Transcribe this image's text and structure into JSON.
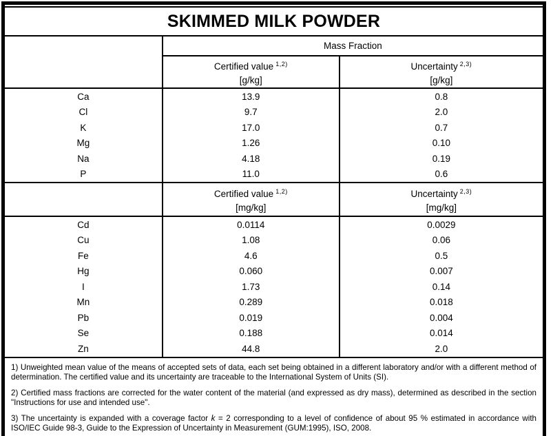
{
  "title": "SKIMMED MILK POWDER",
  "table": {
    "group_header": "Mass Fraction",
    "sections": [
      {
        "certified_label": "Certified value",
        "certified_ref": "1,2)",
        "uncertainty_label": "Uncertainty",
        "uncertainty_ref": "2,3)",
        "unit": "[g/kg]",
        "rows": [
          {
            "element": "Ca",
            "certified": "13.9",
            "uncertainty": "0.8"
          },
          {
            "element": "Cl",
            "certified": "9.7",
            "uncertainty": "2.0"
          },
          {
            "element": "K",
            "certified": "17.0",
            "uncertainty": "0.7"
          },
          {
            "element": "Mg",
            "certified": "1.26",
            "uncertainty": "0.10"
          },
          {
            "element": "Na",
            "certified": "4.18",
            "uncertainty": "0.19"
          },
          {
            "element": "P",
            "certified": "11.0",
            "uncertainty": "0.6"
          }
        ]
      },
      {
        "certified_label": "Certified value",
        "certified_ref": "1,2)",
        "uncertainty_label": "Uncertainty",
        "uncertainty_ref": "2,3)",
        "unit": "[mg/kg]",
        "rows": [
          {
            "element": "Cd",
            "certified": "0.0114",
            "uncertainty": "0.0029"
          },
          {
            "element": "Cu",
            "certified": "1.08",
            "uncertainty": "0.06"
          },
          {
            "element": "Fe",
            "certified": "4.6",
            "uncertainty": "0.5"
          },
          {
            "element": "Hg",
            "certified": "0.060",
            "uncertainty": "0.007"
          },
          {
            "element": "I",
            "certified": "1.73",
            "uncertainty": "0.14"
          },
          {
            "element": "Mn",
            "certified": "0.289",
            "uncertainty": "0.018"
          },
          {
            "element": "Pb",
            "certified": "0.019",
            "uncertainty": "0.004"
          },
          {
            "element": "Se",
            "certified": "0.188",
            "uncertainty": "0.014"
          },
          {
            "element": "Zn",
            "certified": "44.8",
            "uncertainty": "2.0"
          }
        ]
      }
    ]
  },
  "footnotes": {
    "fn1": "1) Unweighted mean value of the means of accepted sets of data, each set being obtained in a different laboratory and/or with a different method of determination. The certified value and its uncertainty are traceable to the International System of Units (SI).",
    "fn2": "2) Certified mass fractions are corrected for the water content of the material (and expressed as dry mass), determined as described in the section \"Instructions for use and intended use\".",
    "fn3_before_k": "3) The uncertainty is expanded with a coverage factor ",
    "fn3_k": "k",
    "fn3_after_k": " = 2 corresponding to a level of confidence of about 95 % estimated in accordance with ISO/IEC Guide 98-3, Guide to the Expression of Uncertainty in Measurement (GUM:1995), ISO, 2008."
  }
}
